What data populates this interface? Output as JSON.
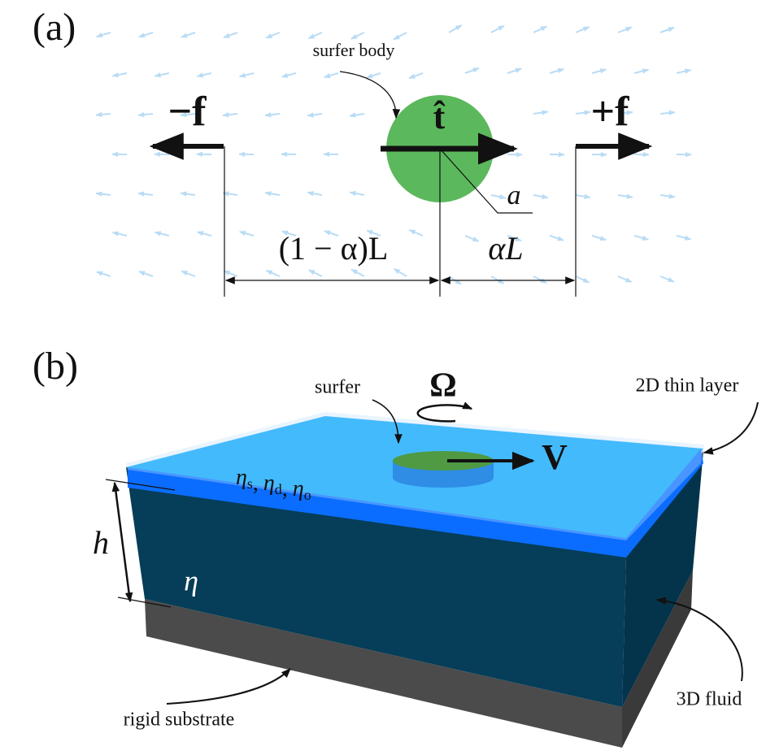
{
  "panel_a": {
    "label": "(a)",
    "surfer_body": "surfer body",
    "minus_force": "−f",
    "direction": "t̂",
    "plus_force": "+f",
    "radius": "a",
    "left_distance": "(1 − α)L",
    "right_distance": "αL"
  },
  "panel_b": {
    "label": "(b)",
    "surfer": "surfer",
    "rotation": "Ω",
    "velocity": "V",
    "thin_layer": "2D thin layer",
    "surface_viscosities": {
      "separator": ",",
      "items": [
        {
          "symbol": "η",
          "sub": "s"
        },
        {
          "symbol": "η",
          "sub": "d"
        },
        {
          "symbol": "η",
          "sub": "o"
        }
      ]
    },
    "height": "h",
    "bulk_viscosity": "η",
    "fluid": "3D fluid",
    "substrate": "rigid substrate"
  }
}
